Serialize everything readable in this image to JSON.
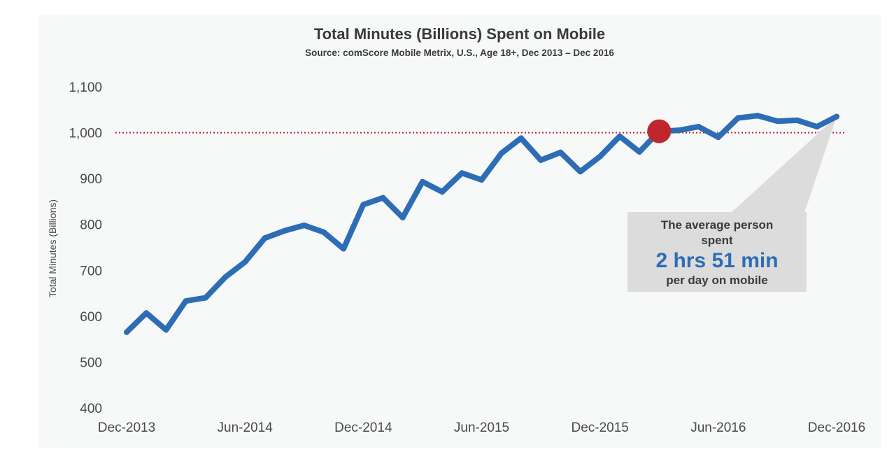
{
  "chart_data": {
    "type": "line",
    "title": "Total Minutes (Billions) Spent on Mobile",
    "subtitle": "Source: comScore Mobile Metrix, U.S., Age 18+, Dec 2013 – Dec 2016",
    "xlabel": "",
    "ylabel": "Total Minutes (Billions)",
    "ylim": [
      400,
      1100
    ],
    "yticks": [
      "400",
      "500",
      "600",
      "700",
      "800",
      "900",
      "1,000",
      "1,100"
    ],
    "ytick_values": [
      400,
      500,
      600,
      700,
      800,
      900,
      1000,
      1100
    ],
    "xtick_labels": [
      "Dec-2013",
      "Jun-2014",
      "Dec-2014",
      "Jun-2015",
      "Dec-2015",
      "Jun-2016",
      "Dec-2016"
    ],
    "xtick_index": [
      0,
      6,
      12,
      18,
      24,
      30,
      36
    ],
    "grid": false,
    "reference_line": {
      "y": 1000,
      "style": "dotted",
      "color": "#c0272d"
    },
    "highlight_point": {
      "index": 27,
      "value": 1003,
      "color": "#c0272d"
    },
    "series_color": "#2d6db5",
    "series": [
      {
        "values": [
          565,
          607,
          570,
          633,
          640,
          685,
          718,
          770,
          786,
          798,
          783,
          747,
          843,
          858,
          815,
          893,
          871,
          912,
          897,
          955,
          988,
          940,
          957,
          915,
          948,
          992,
          958,
          1003,
          1005,
          1013,
          990,
          1032,
          1037,
          1025,
          1027,
          1013,
          1035
        ]
      }
    ]
  },
  "callout": {
    "line1": "The average person",
    "line2": "spent",
    "highlight": "2 hrs 51 min",
    "line3": "per day on mobile",
    "bg_color": "#dcdcdc",
    "highlight_color": "#2d6db5"
  }
}
